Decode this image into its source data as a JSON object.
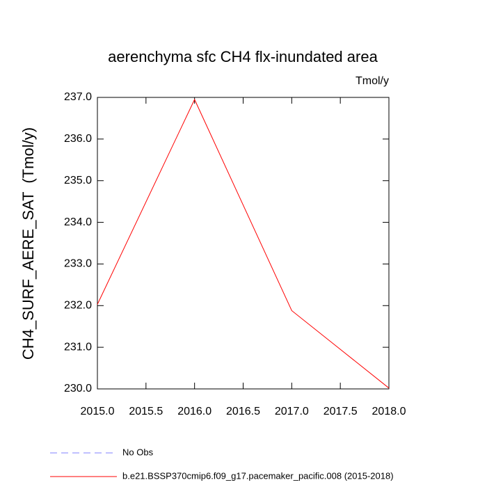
{
  "chart_data": {
    "type": "line",
    "title": "aerenchyma sfc CH4 flx-inundated area",
    "units": "Tmol/y",
    "ylabel": "CH4_SURF_AERE_SAT  (Tmol/y)",
    "x": [
      2015,
      2016,
      2017,
      2018
    ],
    "series": [
      {
        "name": "No Obs",
        "color": "#8080ff",
        "dash": true,
        "values": [
          null,
          null,
          null,
          null
        ]
      },
      {
        "name": "b.e21.BSSP370cmip6.f09_g17.pacemaker_pacific.008 (2015-2018)",
        "color": "#ff0000",
        "dash": false,
        "values": [
          232.03,
          236.95,
          231.88,
          230.02
        ]
      }
    ],
    "xlim": [
      2015,
      2018
    ],
    "xticks": [
      {
        "value": 2015,
        "label": "2015.0"
      },
      {
        "value": 2015.5,
        "label": "2015.5"
      },
      {
        "value": 2016,
        "label": "2016.0"
      },
      {
        "value": 2016.5,
        "label": "2016.5"
      },
      {
        "value": 2017,
        "label": "2017.0"
      },
      {
        "value": 2017.5,
        "label": "2017.5"
      },
      {
        "value": 2018,
        "label": "2018.0"
      }
    ],
    "ylim": [
      230,
      237
    ],
    "yticks": [
      {
        "value": 230,
        "label": "230.0"
      },
      {
        "value": 231,
        "label": "231.0"
      },
      {
        "value": 232,
        "label": "232.0"
      },
      {
        "value": 233,
        "label": "233.0"
      },
      {
        "value": 234,
        "label": "234.0"
      },
      {
        "value": 235,
        "label": "235.0"
      },
      {
        "value": 236,
        "label": "236.0"
      },
      {
        "value": 237,
        "label": "237.0"
      }
    ],
    "grid": false
  }
}
